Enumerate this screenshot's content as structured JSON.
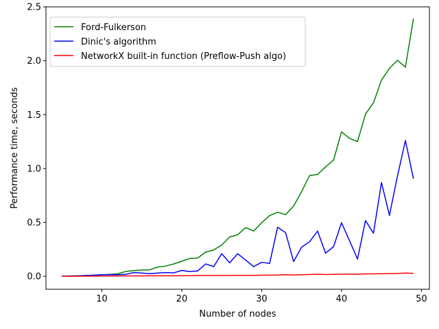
{
  "chart_data": {
    "type": "line",
    "title": "",
    "xlabel": "Number of nodes",
    "ylabel": "Performance time, seconds",
    "xlim": [
      3,
      51
    ],
    "ylim": [
      -0.12,
      2.5
    ],
    "xticks": [
      10,
      20,
      30,
      40,
      50
    ],
    "yticks": [
      0.0,
      0.5,
      1.0,
      1.5,
      2.0,
      2.5
    ],
    "xtick_labels": [
      "10",
      "20",
      "30",
      "40",
      "50"
    ],
    "ytick_labels": [
      "0.0",
      "0.5",
      "1.0",
      "1.5",
      "2.0",
      "2.5"
    ],
    "grid": false,
    "legend_position": "top-left",
    "x": [
      5,
      6,
      7,
      8,
      9,
      10,
      11,
      12,
      13,
      14,
      15,
      16,
      17,
      18,
      19,
      20,
      21,
      22,
      23,
      24,
      25,
      26,
      27,
      28,
      29,
      30,
      31,
      32,
      33,
      34,
      35,
      36,
      37,
      38,
      39,
      40,
      41,
      42,
      43,
      44,
      45,
      46,
      47,
      48,
      49
    ],
    "series": [
      {
        "name": "Ford-Fulkerson",
        "color": "#008000",
        "values": [
          0.002,
          0.003,
          0.005,
          0.007,
          0.01,
          0.014,
          0.018,
          0.024,
          0.045,
          0.053,
          0.058,
          0.06,
          0.086,
          0.095,
          0.115,
          0.14,
          0.165,
          0.17,
          0.225,
          0.245,
          0.29,
          0.365,
          0.385,
          0.452,
          0.42,
          0.497,
          0.563,
          0.595,
          0.572,
          0.652,
          0.785,
          0.935,
          0.945,
          1.015,
          1.078,
          1.34,
          1.28,
          1.25,
          1.505,
          1.61,
          1.82,
          1.93,
          2.005,
          1.94,
          2.39
        ]
      },
      {
        "name": "Dinic's algorithm",
        "color": "#0000ff",
        "values": [
          0.002,
          0.003,
          0.004,
          0.008,
          0.01,
          0.015,
          0.016,
          0.015,
          0.018,
          0.035,
          0.03,
          0.025,
          0.03,
          0.035,
          0.032,
          0.055,
          0.044,
          0.05,
          0.115,
          0.09,
          0.21,
          0.125,
          0.21,
          0.15,
          0.09,
          0.13,
          0.12,
          0.455,
          0.405,
          0.137,
          0.27,
          0.32,
          0.42,
          0.215,
          0.275,
          0.497,
          0.33,
          0.16,
          0.517,
          0.4,
          0.87,
          0.565,
          0.93,
          1.26,
          0.905
        ]
      },
      {
        "name": "NetworkX built-in function (Preflow-Push algo)",
        "color": "#ff0000",
        "values": [
          0.001,
          0.001,
          0.001,
          0.002,
          0.002,
          0.003,
          0.003,
          0.003,
          0.004,
          0.004,
          0.004,
          0.005,
          0.005,
          0.005,
          0.005,
          0.006,
          0.006,
          0.007,
          0.007,
          0.007,
          0.008,
          0.008,
          0.009,
          0.009,
          0.009,
          0.01,
          0.011,
          0.012,
          0.015,
          0.013,
          0.015,
          0.017,
          0.019,
          0.017,
          0.018,
          0.02,
          0.02,
          0.019,
          0.022,
          0.023,
          0.024,
          0.025,
          0.026,
          0.03,
          0.028
        ]
      }
    ]
  }
}
